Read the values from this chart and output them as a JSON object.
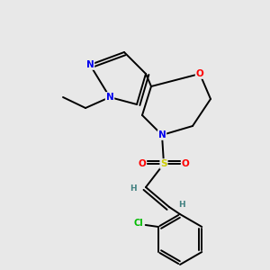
{
  "bg_color": "#e8e8e8",
  "atom_colors": {
    "N": "#0000ee",
    "O": "#ff0000",
    "S": "#cccc00",
    "Cl": "#00bb00",
    "C": "#000000",
    "H": "#408080"
  },
  "bond_color": "#000000",
  "bond_width": 1.4,
  "figsize": [
    3.0,
    3.0
  ],
  "dpi": 100
}
